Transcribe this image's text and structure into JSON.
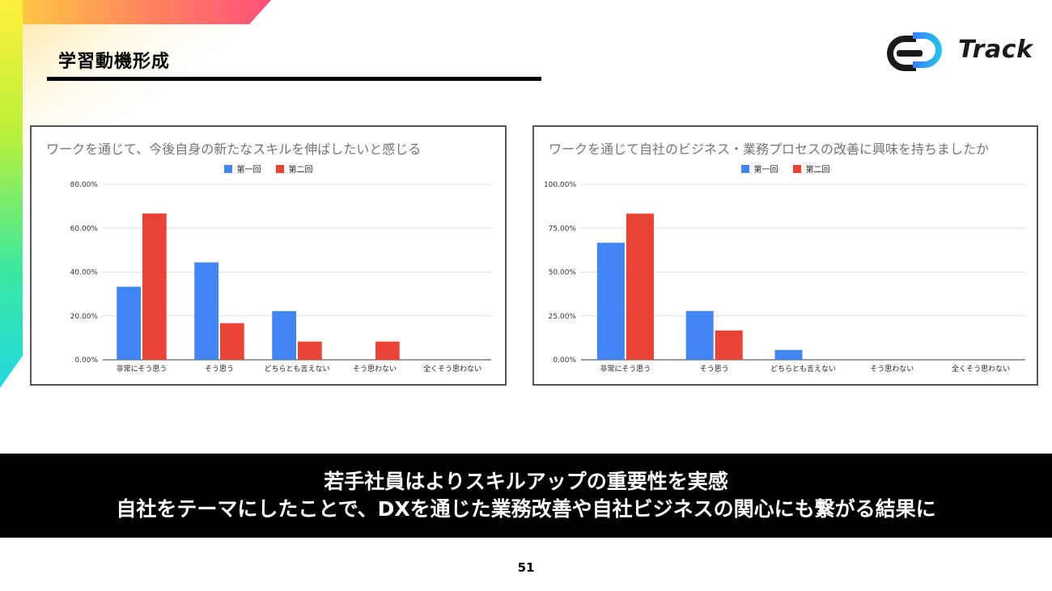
{
  "page": {
    "title": "学習動機形成",
    "logo_text": "Track",
    "page_number": "51"
  },
  "banner": {
    "line1": "若手社員はよりスキルアップの重要性を実感",
    "line2": "自社をテーマにしたことで、DXを通じた業務改善や自社ビジネスの関心にも繋がる結果に"
  },
  "colors": {
    "series1": "#4285f4",
    "series2": "#ea4335",
    "grid": "#dddddd",
    "axis": "#333333"
  },
  "chart_data": [
    {
      "type": "bar",
      "title": "ワークを通じて、今後自身の新たなスキルを伸ばしたいと感じる",
      "categories": [
        "非常にそう思う",
        "そう思う",
        "どちらとも言えない",
        "そう思わない",
        "全くそう思わない"
      ],
      "series": [
        {
          "name": "第一回",
          "values": [
            33.3,
            44.4,
            22.2,
            0,
            0
          ]
        },
        {
          "name": "第二回",
          "values": [
            66.7,
            16.7,
            8.3,
            8.3,
            0
          ]
        }
      ],
      "yticks": [
        "0.00%",
        "20.00%",
        "40.00%",
        "60.00%",
        "80.00%"
      ],
      "ylim": [
        0,
        80
      ],
      "legend": "top-center",
      "grid": true
    },
    {
      "type": "bar",
      "title": "ワークを通じて自社のビジネス・業務プロセスの改善に興味を持ちましたか",
      "categories": [
        "非常にそう思う",
        "そう思う",
        "どちらとも言えない",
        "そう思わない",
        "全くそう思わない"
      ],
      "series": [
        {
          "name": "第一回",
          "values": [
            66.7,
            27.8,
            5.6,
            0,
            0
          ]
        },
        {
          "name": "第二回",
          "values": [
            83.3,
            16.7,
            0,
            0,
            0
          ]
        }
      ],
      "yticks": [
        "0.00%",
        "25.00%",
        "50.00%",
        "75.00%",
        "100.00%"
      ],
      "ylim": [
        0,
        100
      ],
      "legend": "top-center",
      "grid": true
    }
  ]
}
